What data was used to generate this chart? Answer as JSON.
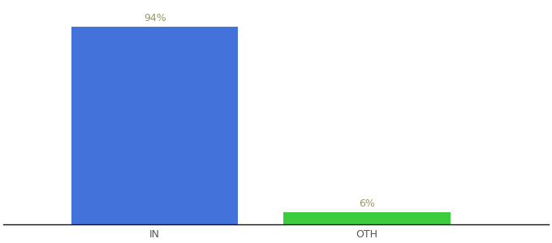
{
  "categories": [
    "IN",
    "OTH"
  ],
  "values": [
    94,
    6
  ],
  "bar_colors": [
    "#4472db",
    "#3dcc3d"
  ],
  "label_texts": [
    "94%",
    "6%"
  ],
  "background_color": "#ffffff",
  "ylim": [
    0,
    105
  ],
  "bar_width": 0.55,
  "label_fontsize": 9,
  "tick_fontsize": 9,
  "tick_color": "#555555",
  "label_color": "#999966",
  "axis_line_color": "#111111",
  "x_positions": [
    0.3,
    1.0
  ]
}
